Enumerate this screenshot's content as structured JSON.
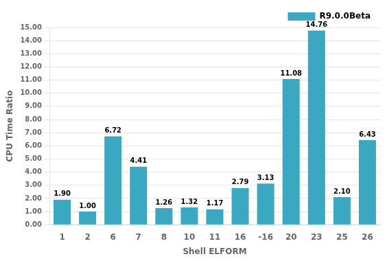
{
  "chart_data": {
    "type": "bar",
    "categories": [
      "1",
      "2",
      "6",
      "7",
      "8",
      "10",
      "11",
      "16",
      "-16",
      "20",
      "23",
      "25",
      "26"
    ],
    "values": [
      1.9,
      1.0,
      6.72,
      4.41,
      1.26,
      1.32,
      1.17,
      2.79,
      3.13,
      11.08,
      14.76,
      2.1,
      6.43
    ],
    "value_labels": [
      "1.90",
      "1.00",
      "6.72",
      "4.41",
      "1.26",
      "1.32",
      "1.17",
      "2.79",
      "3.13",
      "11.08",
      "14.76",
      "2.10",
      "6.43"
    ],
    "data_labels": true,
    "color": "#3AA8C1",
    "series_name": "R9.0.0Beta",
    "xlabel": "Shell ELFORM",
    "ylabel": "CPU Time Ratio",
    "ylim": [
      0,
      15.0
    ],
    "yticks": [
      {
        "value": 0,
        "label": "0.00"
      },
      {
        "value": 1,
        "label": "1.00"
      },
      {
        "value": 2,
        "label": "2.00"
      },
      {
        "value": 3,
        "label": "3.00"
      },
      {
        "value": 4,
        "label": "4.00"
      },
      {
        "value": 5,
        "label": "5.00"
      },
      {
        "value": 6,
        "label": "6.00"
      },
      {
        "value": 7,
        "label": "7.00"
      },
      {
        "value": 8,
        "label": "8.00"
      },
      {
        "value": 9,
        "label": "9.00"
      },
      {
        "value": 10,
        "label": "10.00"
      },
      {
        "value": 11,
        "label": "11.00"
      },
      {
        "value": 12,
        "label": "12.00"
      },
      {
        "value": 13,
        "label": "13.00"
      },
      {
        "value": 14,
        "label": "14.00"
      },
      {
        "value": 15,
        "label": "15.00"
      }
    ],
    "grid": true,
    "legend": "upper right"
  }
}
